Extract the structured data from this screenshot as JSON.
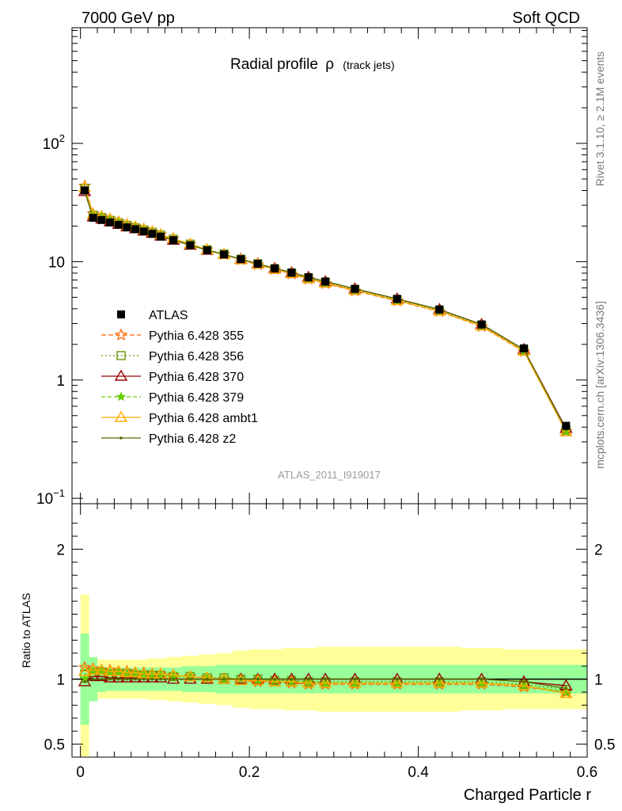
{
  "header": {
    "left": "7000 GeV pp",
    "right": "Soft QCD"
  },
  "side_labels": {
    "rivet": "Rivet 3.1.10, ≥ 2.1M events",
    "mcplots": "mcplots.cern.ch [arXiv:1306.3436]"
  },
  "chart_data": [
    {
      "type": "line",
      "title": "Radial profile",
      "title_symbol": "ρ",
      "title_suffix": "(track jets)",
      "yscale": "log",
      "xlim": [
        -0.01,
        0.6
      ],
      "ylim": [
        0.09,
        950
      ],
      "y_ticks": [
        {
          "value": 0.1,
          "base": "10",
          "exp": "−1"
        },
        {
          "value": 1,
          "base": "1",
          "exp": ""
        },
        {
          "value": 10,
          "base": "10",
          "exp": ""
        },
        {
          "value": 100,
          "base": "10",
          "exp": "2"
        }
      ],
      "watermark": "ATLAS_2011_I919017",
      "legend_position": "middle-left",
      "x": [
        0.005,
        0.015,
        0.025,
        0.035,
        0.045,
        0.055,
        0.065,
        0.075,
        0.085,
        0.095,
        0.11,
        0.13,
        0.15,
        0.17,
        0.19,
        0.21,
        0.23,
        0.25,
        0.27,
        0.29,
        0.325,
        0.375,
        0.425,
        0.475,
        0.525,
        0.575
      ],
      "data": {
        "name": "ATLAS",
        "values": [
          40,
          23.5,
          22.5,
          21.5,
          20.5,
          19.5,
          18.8,
          18.0,
          17.2,
          16.3,
          15.2,
          13.8,
          12.5,
          11.5,
          10.5,
          9.6,
          8.8,
          8.1,
          7.4,
          6.8,
          5.9,
          4.85,
          3.95,
          2.95,
          1.85,
          0.41
        ],
        "ratio_band_stat": [
          0.35,
          0.17,
          0.1,
          0.09,
          0.09,
          0.09,
          0.09,
          0.09,
          0.09,
          0.09,
          0.09,
          0.1,
          0.1,
          0.11,
          0.11,
          0.11,
          0.11,
          0.11,
          0.11,
          0.11,
          0.11,
          0.11,
          0.11,
          0.11,
          0.11,
          0.11
        ],
        "ratio_band_total": [
          0.65,
          0.17,
          0.15,
          0.15,
          0.15,
          0.15,
          0.15,
          0.15,
          0.16,
          0.16,
          0.17,
          0.18,
          0.19,
          0.2,
          0.22,
          0.23,
          0.23,
          0.24,
          0.24,
          0.25,
          0.25,
          0.25,
          0.25,
          0.24,
          0.23,
          0.23
        ]
      },
      "series": [
        {
          "name": "Pythia 6.428 355",
          "color": "#ff6600",
          "dash": "6,3",
          "marker": "star",
          "ratio": [
            1.09,
            1.08,
            1.07,
            1.07,
            1.06,
            1.06,
            1.05,
            1.05,
            1.04,
            1.04,
            1.03,
            1.02,
            1.01,
            1.0,
            0.99,
            0.98,
            0.98,
            0.97,
            0.96,
            0.96,
            0.96,
            0.96,
            0.96,
            0.96,
            0.94,
            0.9
          ]
        },
        {
          "name": "Pythia 6.428 356",
          "color": "#669900",
          "dash": "2,3",
          "marker": "square",
          "ratio": [
            1.04,
            1.05,
            1.05,
            1.04,
            1.04,
            1.04,
            1.03,
            1.03,
            1.03,
            1.03,
            1.02,
            1.02,
            1.01,
            1.01,
            1.0,
            1.0,
            0.99,
            0.99,
            0.98,
            0.98,
            0.98,
            0.98,
            0.98,
            0.98,
            0.96,
            0.92
          ]
        },
        {
          "name": "Pythia 6.428 370",
          "color": "#990000",
          "dash": "",
          "marker": "triangle",
          "ratio": [
            0.98,
            1.02,
            1.02,
            1.01,
            1.01,
            1.01,
            1.01,
            1.01,
            1.01,
            1.01,
            1.0,
            1.0,
            1.0,
            1.0,
            1.0,
            1.0,
            1.0,
            1.0,
            1.0,
            1.0,
            1.0,
            1.0,
            1.0,
            1.0,
            0.98,
            0.95
          ]
        },
        {
          "name": "Pythia 6.428 379",
          "color": "#66cc00",
          "dash": "5,3",
          "marker": "smallstar",
          "ratio": [
            1.0,
            1.06,
            1.06,
            1.05,
            1.05,
            1.04,
            1.04,
            1.04,
            1.03,
            1.03,
            1.02,
            1.02,
            1.01,
            1.0,
            1.0,
            0.99,
            0.99,
            0.98,
            0.98,
            0.97,
            0.97,
            0.97,
            0.97,
            0.97,
            0.95,
            0.9
          ]
        },
        {
          "name": "Pythia 6.428 ambt1",
          "color": "#ffaa00",
          "dash": "",
          "marker": "triangle",
          "ratio": [
            1.06,
            1.07,
            1.07,
            1.06,
            1.06,
            1.05,
            1.05,
            1.04,
            1.04,
            1.04,
            1.03,
            1.02,
            1.01,
            1.0,
            0.99,
            0.99,
            0.98,
            0.98,
            0.97,
            0.97,
            0.97,
            0.97,
            0.97,
            0.97,
            0.95,
            0.89
          ]
        },
        {
          "name": "Pythia 6.428 z2",
          "color": "#556b00",
          "dash": "",
          "marker": "dot",
          "ratio": [
            0.98,
            1.0,
            1.0,
            1.0,
            1.0,
            1.0,
            1.0,
            1.0,
            1.0,
            1.0,
            1.0,
            1.0,
            1.0,
            1.0,
            1.0,
            1.0,
            1.0,
            1.0,
            1.0,
            1.0,
            1.0,
            1.0,
            1.0,
            1.0,
            0.98,
            0.93
          ]
        }
      ]
    },
    {
      "type": "line",
      "ylabel": "Ratio to ATLAS",
      "xlabel": "Charged Particle r",
      "xlim": [
        -0.01,
        0.6
      ],
      "ylim": [
        0.4,
        2.35
      ],
      "y_ticks": [
        0.5,
        1,
        2
      ],
      "y_tick_labels": [
        "0.5",
        "1",
        "2"
      ],
      "x_ticks": [
        0,
        0.2,
        0.4,
        0.6
      ],
      "x_tick_labels": [
        "0",
        "0.2",
        "0.4",
        "0.6"
      ]
    }
  ]
}
